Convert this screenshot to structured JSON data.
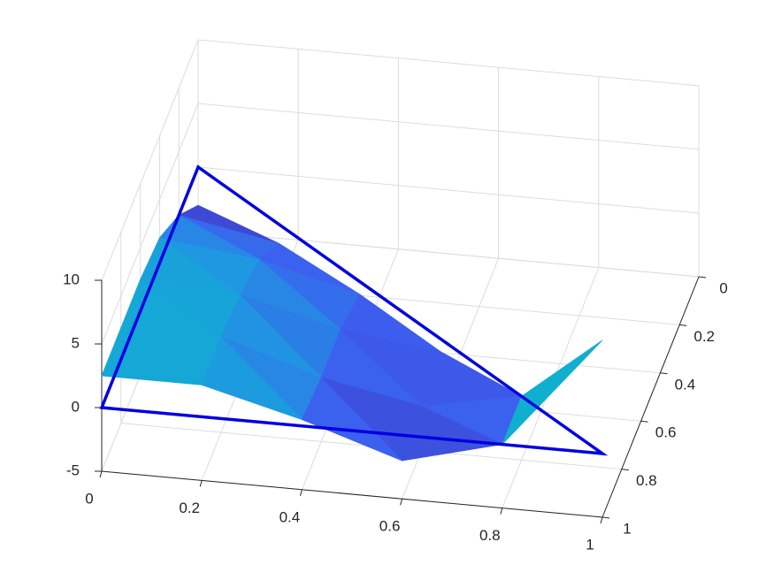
{
  "chart_data": {
    "type": "surface3d",
    "colormap": "parula",
    "x": [
      0,
      0.2,
      0.4,
      0.6,
      0.8,
      1
    ],
    "y": [
      0,
      0.2,
      0.4,
      0.6,
      0.8,
      1
    ],
    "z": [
      [
        -3,
        null,
        null,
        null,
        null,
        null
      ],
      [
        0,
        -1.5,
        null,
        null,
        null,
        null
      ],
      [
        2,
        1,
        -1,
        null,
        null,
        null
      ],
      [
        2.5,
        2,
        0,
        -1,
        null,
        null
      ],
      [
        2.5,
        2.5,
        0,
        -1.5,
        0,
        null
      ],
      [
        2.5,
        2.5,
        0.5,
        -2,
        0,
        8.9
      ]
    ],
    "outline": {
      "color": "#0000e0",
      "vertices": [
        [
          0,
          0,
          0
        ],
        [
          0,
          1,
          0
        ],
        [
          1,
          1,
          0
        ]
      ]
    },
    "xlim": [
      0,
      1
    ],
    "ylim": [
      0,
      1
    ],
    "zlim": [
      -5,
      10
    ],
    "xticks": [
      0,
      0.2,
      0.4,
      0.6,
      0.8,
      1
    ],
    "yticks": [
      0,
      0.2,
      0.4,
      0.6,
      0.8,
      1
    ],
    "zticks": [
      -5,
      0,
      5,
      10
    ],
    "grid": true
  }
}
